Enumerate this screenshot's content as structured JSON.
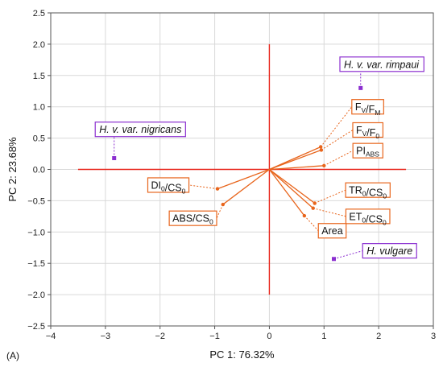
{
  "chart_data": {
    "type": "scatter",
    "subtype": "pca-biplot",
    "xlabel": "PC 1: 76.32%",
    "ylabel": "PC 2: 23.68%",
    "panel_label": "(A)",
    "xlim": [
      -4,
      3
    ],
    "ylim": [
      -2.5,
      2.5
    ],
    "xticks": [
      -4,
      -3,
      -2,
      -1,
      0,
      1,
      2,
      3
    ],
    "yticks": [
      -2.5,
      -2.0,
      -1.5,
      -1.0,
      -0.5,
      0.0,
      0.5,
      1.0,
      1.5,
      2.0,
      2.5
    ],
    "ytick_labels": [
      "−2.5",
      "−2.0",
      "−1.5",
      "−1.0",
      "−0.5",
      "0.0",
      "0.5",
      "1.0",
      "1.5",
      "2.0",
      "2.5"
    ],
    "xtick_labels": [
      "−4",
      "−3",
      "−2",
      "−1",
      "0",
      "1",
      "2",
      "3"
    ],
    "grid": true,
    "reference_lines": {
      "horizontal": {
        "y": 0,
        "x_from": -3.5,
        "x_to": 2.5
      },
      "vertical": {
        "x": 0,
        "y_from": -2.0,
        "y_to": 2.0
      }
    },
    "colors": {
      "reference_lines": "#e8261c",
      "loadings": "#e8651c",
      "groups": "#8b2fd0",
      "grid": "#d9d9d9"
    },
    "loadings": [
      {
        "label": "F",
        "sub1": "V",
        "mid": "/F",
        "sub2": "M",
        "x": 0.94,
        "y": 0.36,
        "label_x": 1.8,
        "label_y": 1.0
      },
      {
        "label": "F",
        "sub1": "V",
        "mid": "/F",
        "sub2": "0",
        "x": 0.95,
        "y": 0.31,
        "label_x": 1.8,
        "label_y": 0.63
      },
      {
        "label": "PI",
        "sub1": "ABS",
        "mid": "",
        "sub2": "",
        "x": 1.0,
        "y": 0.06,
        "label_x": 1.8,
        "label_y": 0.3
      },
      {
        "label": "TR",
        "sub1": "0",
        "mid": "/CS",
        "sub2": "0",
        "x": 0.83,
        "y": -0.54,
        "label_x": 1.8,
        "label_y": -0.33
      },
      {
        "label": "ET",
        "sub1": "0",
        "mid": "/CS",
        "sub2": "0",
        "x": 0.8,
        "y": -0.62,
        "label_x": 1.8,
        "label_y": -0.75
      },
      {
        "label": "Area",
        "sub1": "",
        "mid": "",
        "sub2": "",
        "x": 0.64,
        "y": -0.74,
        "label_x": 1.15,
        "label_y": -0.98
      },
      {
        "label": "DI",
        "sub1": "0",
        "mid": "/CS",
        "sub2": "0",
        "x": -0.95,
        "y": -0.31,
        "label_x": -1.85,
        "label_y": -0.25
      },
      {
        "label": "ABS/CS",
        "sub1": "",
        "mid": "",
        "sub2": "0",
        "x": -0.85,
        "y": -0.56,
        "label_x": -1.4,
        "label_y": -0.78
      }
    ],
    "groups": [
      {
        "name": "H. v. var. rimpaui",
        "x": 1.67,
        "y": 1.3,
        "label_x": 2.05,
        "label_y": 1.68
      },
      {
        "name": "H. v. var. nigricans",
        "x": -2.84,
        "y": 0.18,
        "label_x": -2.36,
        "label_y": 0.64
      },
      {
        "name": "H. vulgare",
        "x": 1.18,
        "y": -1.43,
        "label_x": 2.2,
        "label_y": -1.3
      }
    ]
  }
}
